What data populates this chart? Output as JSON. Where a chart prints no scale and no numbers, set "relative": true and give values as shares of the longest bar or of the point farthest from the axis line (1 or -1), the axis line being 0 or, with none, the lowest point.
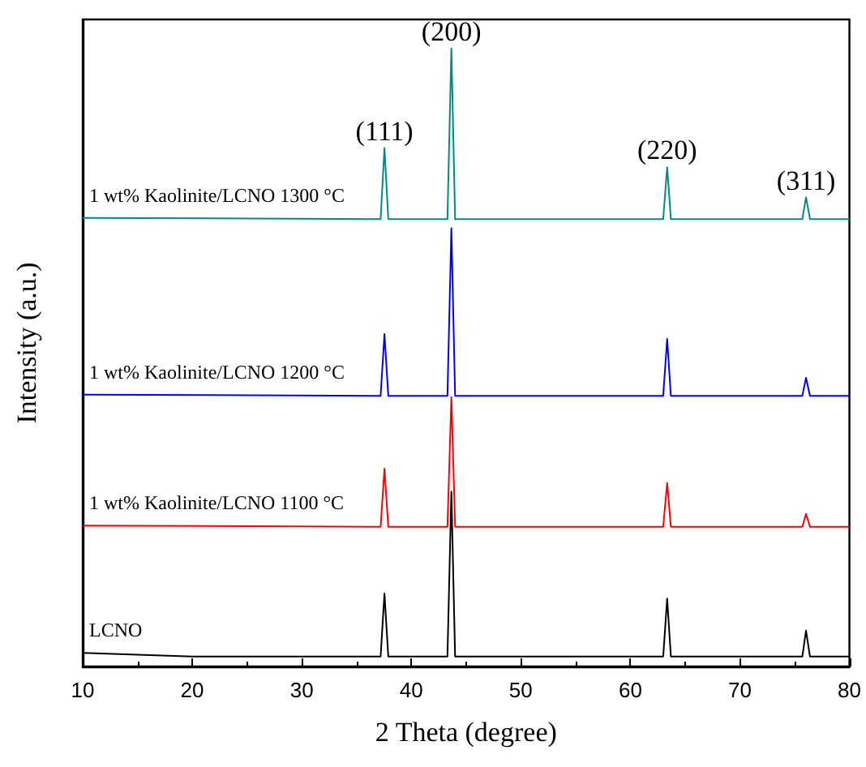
{
  "chart_data": {
    "type": "line",
    "relative": true,
    "xlabel": "2 Theta (degree)",
    "ylabel": "Intensity (a.u.)",
    "xlim": [
      10,
      80
    ],
    "xticks": [
      10,
      20,
      30,
      40,
      50,
      60,
      70,
      80
    ],
    "grid": false,
    "legend": false,
    "marker": "none",
    "line_style": "solid",
    "annotations": [
      {
        "text": "(111)",
        "x": 37.55,
        "y": 0.839
      },
      {
        "text": "(200)",
        "x": 43.66,
        "y": 1
      },
      {
        "text": "(220)",
        "x": 63.36,
        "y": 0.808
      },
      {
        "text": "(311)",
        "x": 76.04,
        "y": 0.759
      }
    ],
    "series": [
      {
        "name": "LCNO",
        "color": "#000000",
        "x": [
          10,
          20,
          37.2,
          37.55,
          37.9,
          43.3,
          43.66,
          44.0,
          63.0,
          63.36,
          63.7,
          75.7,
          76.04,
          76.4,
          80
        ],
        "values": [
          0.022,
          0.016,
          0.016,
          0.118,
          0.016,
          0.016,
          0.283,
          0.016,
          0.016,
          0.11,
          0.016,
          0.016,
          0.058,
          0.016,
          0.016
        ]
      },
      {
        "name": "1 wt% Kaolinite/LCNO 1100 °C",
        "color": "#ff0000",
        "x": [
          10,
          37.2,
          37.55,
          37.9,
          43.3,
          43.66,
          44.0,
          63.0,
          63.36,
          63.7,
          75.7,
          76.04,
          76.4,
          80
        ],
        "values": [
          0.228,
          0.226,
          0.32,
          0.226,
          0.226,
          0.436,
          0.226,
          0.226,
          0.297,
          0.226,
          0.226,
          0.247,
          0.226,
          0.226
        ]
      },
      {
        "name": "1 wt% Kaolinite/LCNO 1200 °C",
        "color": "#0000ff",
        "x": [
          10,
          37.2,
          37.55,
          37.9,
          43.3,
          43.66,
          44.0,
          63.0,
          63.36,
          63.7,
          75.7,
          76.04,
          76.4,
          80
        ],
        "values": [
          0.44,
          0.438,
          0.538,
          0.438,
          0.438,
          0.709,
          0.438,
          0.438,
          0.53,
          0.438,
          0.438,
          0.467,
          0.438,
          0.438
        ]
      },
      {
        "name": "1 wt% Kaolinite/LCNO 1300 °C",
        "color": "#008b8b",
        "x": [
          10,
          37.2,
          37.55,
          37.9,
          43.3,
          43.66,
          44.0,
          63.0,
          63.36,
          63.7,
          75.7,
          76.04,
          76.4,
          80
        ],
        "values": [
          0.726,
          0.724,
          0.839,
          0.724,
          0.724,
          1,
          0.724,
          0.724,
          0.808,
          0.724,
          0.724,
          0.759,
          0.724,
          0.724
        ]
      }
    ]
  }
}
